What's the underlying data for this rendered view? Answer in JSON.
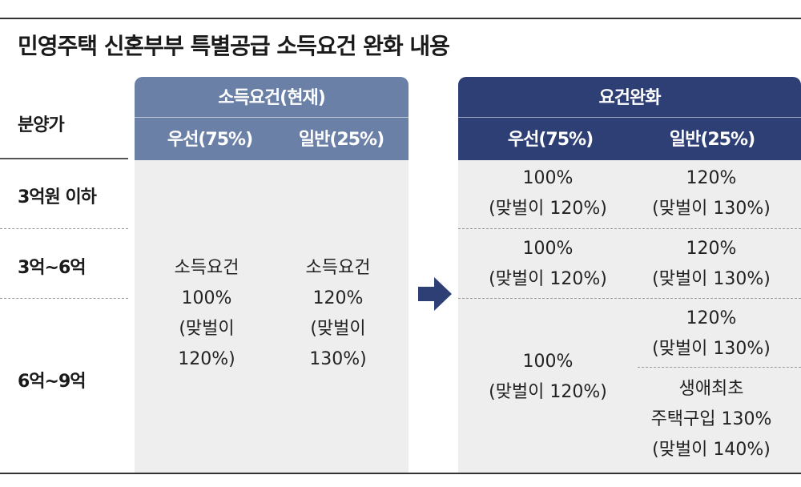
{
  "title": "민영주택 신혼부부 특별공급 소득요건 완화 내용",
  "row_header": "분양가",
  "rows": [
    "3억원 이하",
    "3억~6억",
    "6억~9억"
  ],
  "current": {
    "title": "소득요건(현재)",
    "sub": [
      "우선(75%)",
      "일반(25%)"
    ],
    "priority": [
      "소득요건",
      "100%",
      "(맞벌이",
      "120%)"
    ],
    "general": [
      "소득요건",
      "120%",
      "(맞벌이",
      "130%)"
    ]
  },
  "relaxed": {
    "title": "요건완화",
    "sub": [
      "우선(75%)",
      "일반(25%)"
    ],
    "row1": {
      "priority": [
        "100%",
        "(맞벌이 120%)"
      ],
      "general": [
        "120%",
        "(맞벌이 130%)"
      ]
    },
    "row2": {
      "priority": [
        "100%",
        "(맞벌이 120%)"
      ],
      "general": [
        "120%",
        "(맞벌이 130%)"
      ]
    },
    "row3": {
      "priority": [
        "100%",
        "(맞벌이 120%)"
      ],
      "general_a": [
        "120%",
        "(맞벌이 130%)"
      ],
      "general_b": [
        "생애최초",
        "주택구입 130%",
        "(맞벌이 140%)"
      ]
    }
  },
  "colors": {
    "current_header": "#6b80a6",
    "relaxed_header": "#2e3f75",
    "panel_bg": "#eeeeef",
    "arrow": "#2e3f75"
  }
}
